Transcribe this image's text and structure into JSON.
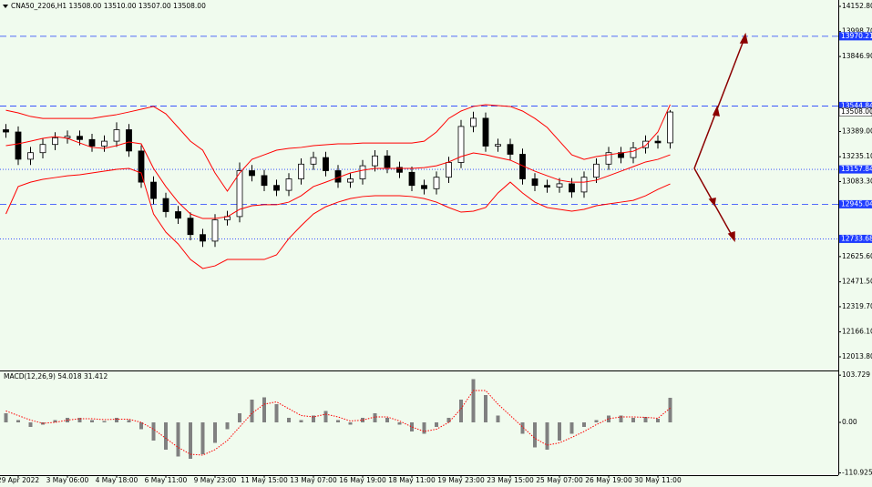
{
  "chart_data": [
    {
      "type": "candlestick",
      "title": "CNA50_2206,H1 13508.00 13510.00 13507.00 13508.00",
      "categories": [
        null,
        "29 Apr 2022",
        null,
        null,
        null,
        "3 May 06:00",
        null,
        null,
        null,
        "4 May 18:00",
        null,
        null,
        null,
        "6 May 11:00",
        null,
        null,
        null,
        "9 May 23:00",
        null,
        null,
        null,
        "11 May 15:00",
        null,
        null,
        null,
        "13 May 07:00",
        null,
        null,
        null,
        "16 May 19:00",
        null,
        null,
        null,
        "18 May 11:00",
        null,
        null,
        null,
        "19 May 23:00",
        null,
        null,
        null,
        "23 May 15:00",
        null,
        null,
        null,
        "25 May 07:00",
        null,
        null,
        null,
        "26 May 19:00",
        null,
        null,
        null,
        "30 May 11:00",
        null
      ],
      "open": [
        13400,
        13386,
        13220,
        13260,
        13310,
        13350,
        13360,
        13340,
        13300,
        13330,
        13400,
        13270,
        13080,
        12980,
        12900,
        12860,
        12760,
        12720,
        12850,
        12870,
        13150,
        13120,
        13060,
        13030,
        13100,
        13190,
        13230,
        13150,
        13080,
        13100,
        13180,
        13240,
        13170,
        13140,
        13060,
        13040,
        13110,
        13200,
        13420,
        13470,
        13300,
        13310,
        13250,
        13100,
        13060,
        13050,
        13070,
        13020,
        13110,
        13190,
        13260,
        13230,
        13290,
        13330,
        13320
      ],
      "high": [
        13435,
        13420,
        13295,
        13345,
        13385,
        13395,
        13395,
        13375,
        13365,
        13445,
        13435,
        13305,
        13115,
        13015,
        12935,
        12895,
        12795,
        12885,
        12905,
        13200,
        13185,
        13155,
        13095,
        13135,
        13225,
        13265,
        13265,
        13185,
        13135,
        13215,
        13275,
        13275,
        13205,
        13175,
        13095,
        13145,
        13235,
        13460,
        13510,
        13505,
        13345,
        13345,
        13285,
        13135,
        13095,
        13105,
        13105,
        13145,
        13225,
        13295,
        13295,
        13325,
        13365,
        13365,
        13520
      ],
      "low": [
        13351,
        13185,
        13185,
        13225,
        13275,
        13315,
        13305,
        13265,
        13265,
        13295,
        13235,
        13045,
        12945,
        12865,
        12825,
        12725,
        12685,
        12685,
        12815,
        12835,
        13085,
        13025,
        12995,
        12995,
        13065,
        13155,
        13115,
        13045,
        13045,
        13065,
        13145,
        13135,
        13105,
        13025,
        13005,
        13005,
        13075,
        13165,
        13385,
        13265,
        13265,
        13215,
        13065,
        13025,
        13015,
        13015,
        12985,
        12985,
        13075,
        13155,
        13195,
        13195,
        13255,
        13285,
        13285
      ],
      "close": [
        13386,
        13220,
        13260,
        13310,
        13350,
        13360,
        13340,
        13300,
        13330,
        13400,
        13270,
        13080,
        12980,
        12900,
        12860,
        12760,
        12720,
        12850,
        12870,
        13150,
        13120,
        13060,
        13030,
        13100,
        13190,
        13230,
        13150,
        13080,
        13100,
        13180,
        13240,
        13170,
        13140,
        13060,
        13040,
        13110,
        13200,
        13420,
        13470,
        13300,
        13310,
        13250,
        13100,
        13060,
        13050,
        13070,
        13020,
        13110,
        13190,
        13260,
        13230,
        13290,
        13330,
        13320,
        13508
      ],
      "up_color": "#ffffff",
      "down_color": "#000000",
      "bands": {
        "color": "#ff0000",
        "upper": [
          13519,
          13503,
          13481,
          13469,
          13469,
          13469,
          13469,
          13469,
          13481,
          13492,
          13508,
          13525,
          13542,
          13497,
          13414,
          13330,
          13275,
          13136,
          13025,
          13136,
          13219,
          13247,
          13275,
          13286,
          13292,
          13303,
          13308,
          13314,
          13314,
          13319,
          13319,
          13319,
          13319,
          13319,
          13330,
          13386,
          13469,
          13514,
          13542,
          13553,
          13547,
          13542,
          13514,
          13469,
          13414,
          13330,
          13247,
          13219,
          13236,
          13247,
          13258,
          13269,
          13303,
          13386,
          13553
        ],
        "middle": [
          13303,
          13314,
          13330,
          13347,
          13358,
          13347,
          13319,
          13292,
          13286,
          13303,
          13325,
          13314,
          13164,
          13053,
          12958,
          12886,
          12858,
          12858,
          12869,
          12914,
          12936,
          12942,
          12942,
          12958,
          12997,
          13053,
          13080,
          13108,
          13136,
          13153,
          13164,
          13164,
          13164,
          13164,
          13169,
          13180,
          13203,
          13236,
          13258,
          13247,
          13230,
          13214,
          13180,
          13147,
          13119,
          13092,
          13080,
          13080,
          13092,
          13119,
          13147,
          13175,
          13203,
          13219,
          13247
        ],
        "lower": [
          12886,
          13053,
          13080,
          13097,
          13108,
          13119,
          13125,
          13136,
          13147,
          13158,
          13164,
          13136,
          12886,
          12775,
          12703,
          12608,
          12553,
          12569,
          12608,
          12608,
          12608,
          12608,
          12636,
          12736,
          12814,
          12886,
          12930,
          12958,
          12980,
          12992,
          12997,
          12997,
          12997,
          12992,
          12980,
          12958,
          12925,
          12897,
          12903,
          12925,
          13014,
          13080,
          13014,
          12958,
          12925,
          12914,
          12903,
          12914,
          12936,
          12947,
          12958,
          12969,
          12997,
          13036,
          13069
        ]
      },
      "levels": [
        {
          "value": 13970.21,
          "style": "dashed"
        },
        {
          "value": 13544.84,
          "style": "dashed"
        },
        {
          "value": 13157.84,
          "style": "dotted"
        },
        {
          "value": 12945.04,
          "style": "dashed"
        },
        {
          "value": 12733.68,
          "style": "dotted"
        }
      ],
      "level_color": "#1e3cff",
      "current_price": {
        "value": 13508,
        "label": "13508.00"
      },
      "ylim": [
        11930.5,
        14191.7
      ],
      "yticks": [
        {
          "value": 14152.8,
          "label": "14152.80"
        },
        {
          "value": 13998.7,
          "label": "13998.70"
        },
        {
          "value": 13846.9,
          "label": "13846.90"
        },
        {
          "value": 13389,
          "label": "13389.00"
        },
        {
          "value": 13235.1,
          "label": "13235.10"
        },
        {
          "value": 13083.3,
          "label": "13083.30"
        },
        {
          "value": 12625.6,
          "label": "12625.60"
        },
        {
          "value": 12471.5,
          "label": "12471.50"
        },
        {
          "value": 12319.7,
          "label": "12319.70"
        },
        {
          "value": 12166.1,
          "label": "12166.10"
        },
        {
          "value": 12013.8,
          "label": "12013.80"
        }
      ]
    },
    {
      "type": "macd",
      "title": "MACD(12,26,9) 54.018 31.412",
      "histogram": [
        20,
        5,
        -10,
        -5,
        5,
        10,
        10,
        5,
        3,
        10,
        5,
        -15,
        -40,
        -60,
        -75,
        -80,
        -70,
        -45,
        -15,
        20,
        50,
        55,
        40,
        10,
        5,
        15,
        25,
        5,
        -5,
        10,
        20,
        10,
        -5,
        -20,
        -25,
        -10,
        10,
        50,
        95,
        60,
        15,
        0,
        -25,
        -55,
        -60,
        -40,
        -25,
        -10,
        5,
        15,
        15,
        10,
        12,
        8,
        54.018
      ],
      "signal": [
        25,
        15,
        5,
        -2,
        0,
        5,
        8,
        8,
        6,
        7,
        7,
        0,
        -15,
        -35,
        -55,
        -70,
        -72,
        -60,
        -40,
        -10,
        20,
        40,
        45,
        30,
        15,
        12,
        18,
        12,
        3,
        5,
        12,
        12,
        3,
        -10,
        -20,
        -15,
        0,
        30,
        70,
        70,
        40,
        15,
        -10,
        -35,
        -50,
        -45,
        -33,
        -20,
        -5,
        8,
        12,
        12,
        11,
        9,
        31.412
      ],
      "histogram_color": "#808080",
      "signal_color": "#ff0000",
      "ylim": [
        -116,
        112
      ],
      "yticks": [
        103.729,
        {
          "value": 0,
          "label": "0.00"
        },
        -110.925
      ]
    }
  ]
}
